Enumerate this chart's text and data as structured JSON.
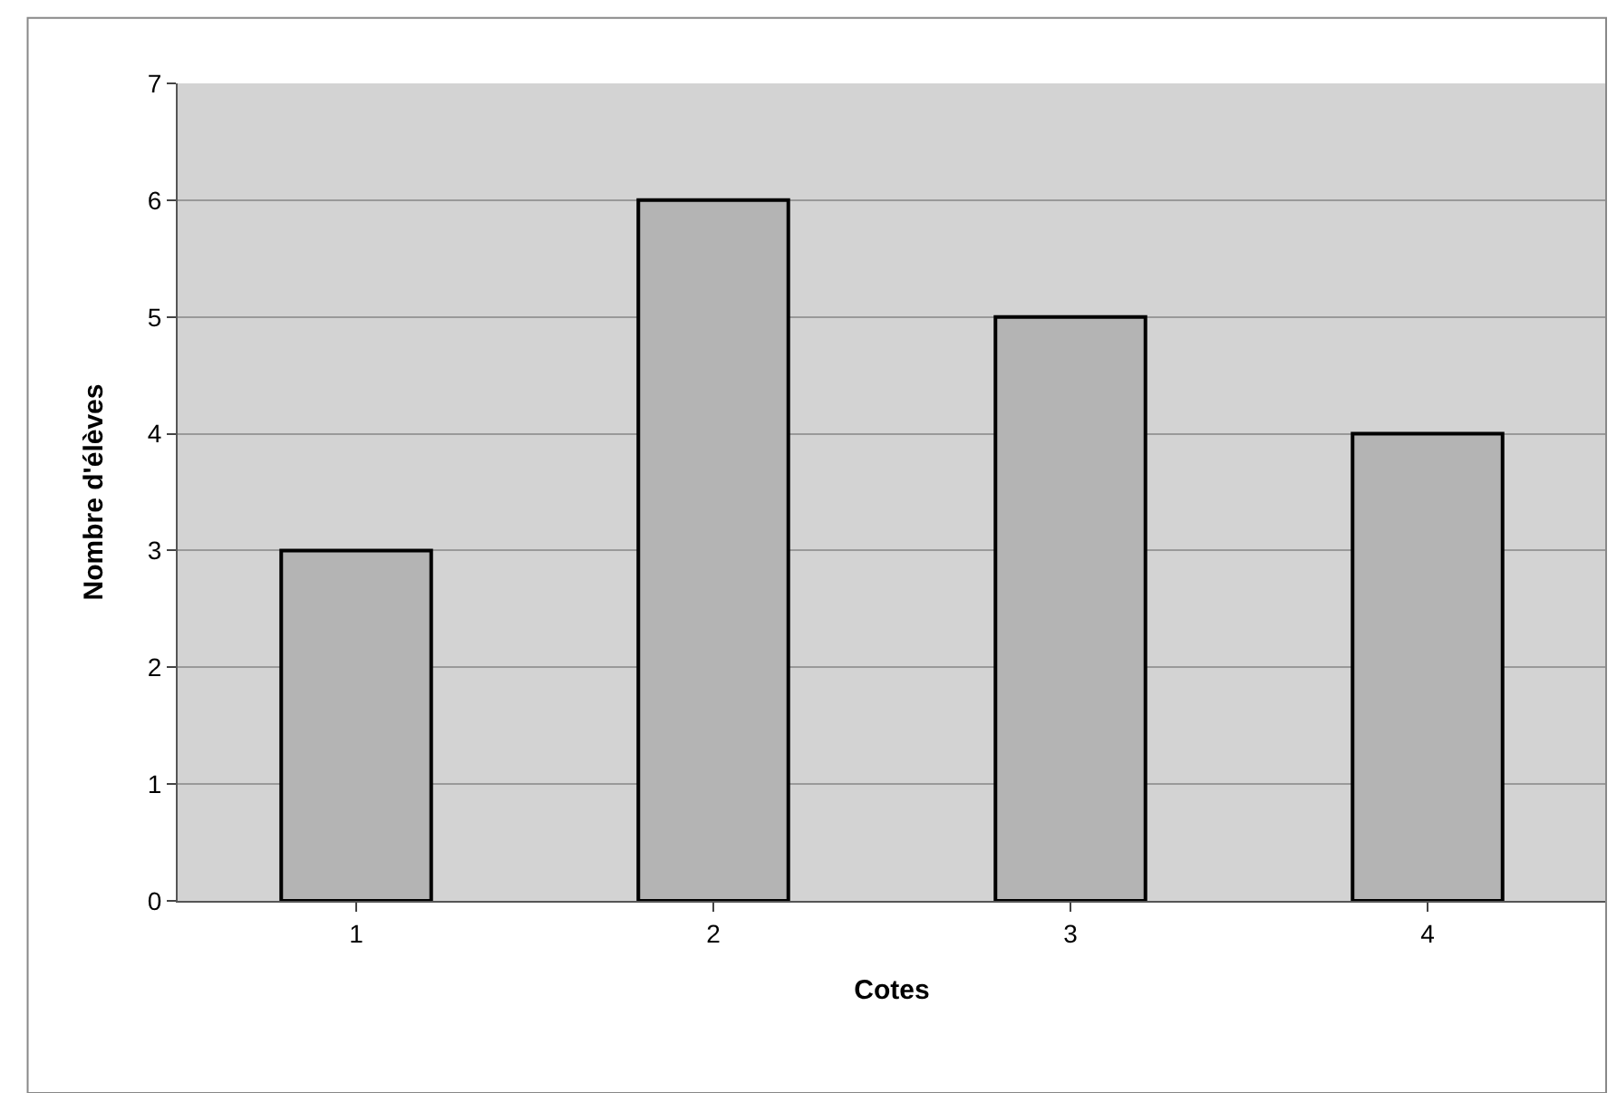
{
  "chart_data": {
    "type": "bar",
    "xlabel": "Cotes",
    "ylabel": "Nombre d'élèves",
    "categories": [
      "1",
      "2",
      "3",
      "4"
    ],
    "values": [
      3,
      6,
      5,
      4
    ],
    "color": "#b4b4b4",
    "ylim": [
      0,
      7
    ],
    "yticks": [
      0,
      1,
      2,
      3,
      4,
      5,
      6,
      7
    ],
    "grid": "y"
  }
}
